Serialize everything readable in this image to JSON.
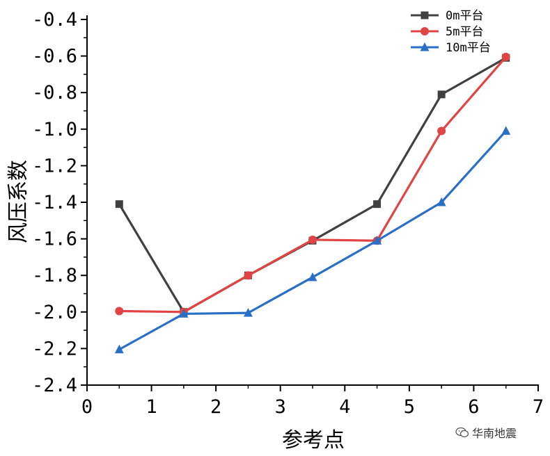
{
  "chart_data": {
    "type": "line",
    "xlabel": "参考点",
    "ylabel": "风压系数",
    "xlim": [
      0,
      7
    ],
    "ylim": [
      -2.4,
      -0.4
    ],
    "x_ticks": [
      "0",
      "1",
      "2",
      "3",
      "4",
      "5",
      "6",
      "7"
    ],
    "y_ticks": [
      "-0.4",
      "-0.6",
      "-0.8",
      "-1.0",
      "-1.2",
      "-1.4",
      "-1.6",
      "-1.8",
      "-2.0",
      "-2.2",
      "-2.4"
    ],
    "grid": false,
    "legend_position": "top-right",
    "series": [
      {
        "name": "0m平台",
        "color": "#404040",
        "marker": "square",
        "x": [
          0.5,
          1.5,
          2.5,
          3.5,
          4.5,
          5.5,
          6.5
        ],
        "y": [
          -1.41,
          -2.0,
          -1.8,
          -1.61,
          -1.41,
          -0.81,
          -0.61
        ]
      },
      {
        "name": "5m平台",
        "color": "#e04444",
        "marker": "circle",
        "x": [
          0.5,
          1.5,
          2.5,
          3.5,
          4.5,
          5.5,
          6.5
        ],
        "y": [
          -1.995,
          -2.0,
          -1.8,
          -1.605,
          -1.61,
          -1.01,
          -0.605
        ]
      },
      {
        "name": "10m平台",
        "color": "#2a6fc6",
        "marker": "triangle",
        "x": [
          0.5,
          1.5,
          2.5,
          3.5,
          4.5,
          5.5,
          6.5
        ],
        "y": [
          -2.205,
          -2.01,
          -2.005,
          -1.81,
          -1.61,
          -1.4,
          -1.01
        ]
      }
    ]
  },
  "watermark": {
    "text": "华南地震",
    "icon": "wechat-icon"
  }
}
